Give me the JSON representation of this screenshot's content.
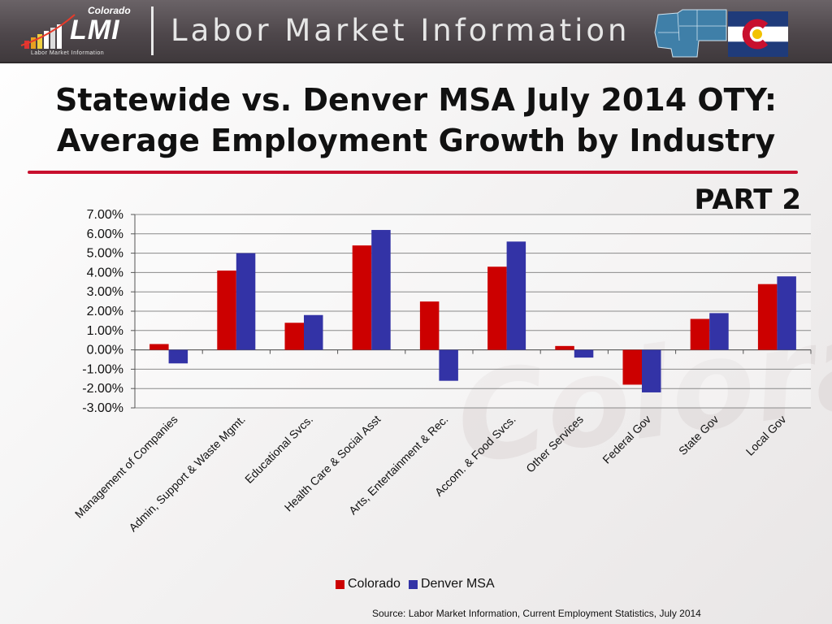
{
  "header": {
    "logo_top": "Colorado",
    "logo_main": "LMI",
    "logo_sub": "Labor Market Information",
    "banner_title": "Labor Market Information"
  },
  "title": {
    "line1": "Statewide vs. Denver MSA July 2014 OTY:",
    "line2": "Average Employment Growth by Industry",
    "part": "PART 2"
  },
  "colors": {
    "title_rule": "#c8102e",
    "colorado": "#cc0000",
    "denver": "#3333a6"
  },
  "chart_data": {
    "type": "bar",
    "title": "",
    "xlabel": "",
    "ylabel": "",
    "ylim": [
      -0.03,
      0.07
    ],
    "yticks": [
      "7.00%",
      "6.00%",
      "5.00%",
      "4.00%",
      "3.00%",
      "2.00%",
      "1.00%",
      "0.00%",
      "-1.00%",
      "-2.00%",
      "-3.00%"
    ],
    "grid": true,
    "legend_position": "bottom",
    "categories": [
      "Management of Companies",
      "Admin, Support & Waste Mgmt.",
      "Educational Svcs.",
      "Health Care & Social Asst",
      "Arts, Entertainment & Rec.",
      "Accom. & Food Svcs.",
      "Other Services",
      "Federal Gov",
      "State Gov",
      "Local Gov"
    ],
    "series": [
      {
        "name": "Colorado",
        "color": "#cc0000",
        "values": [
          0.003,
          0.041,
          0.014,
          0.054,
          0.025,
          0.043,
          0.002,
          -0.018,
          0.016,
          0.034
        ]
      },
      {
        "name": "Denver MSA",
        "color": "#3333a6",
        "values": [
          -0.007,
          0.05,
          0.018,
          0.062,
          -0.016,
          0.056,
          -0.004,
          -0.022,
          0.019,
          0.038
        ]
      }
    ]
  },
  "source": "Source: Labor Market Information, Current  Employment Statistics, July 2014",
  "watermark": "Colorado"
}
